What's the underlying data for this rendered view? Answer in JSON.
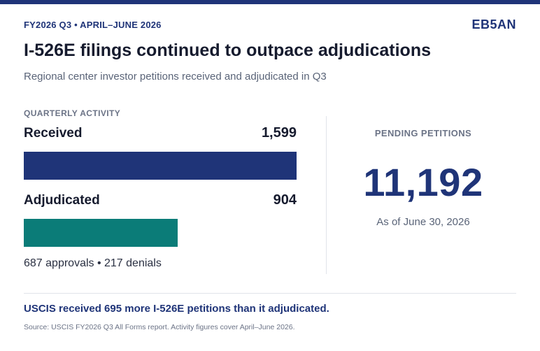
{
  "header": {
    "period": "FY2026 Q3 • APRIL–JUNE 2026",
    "brand": "EB5AN"
  },
  "title": "I-526E filings continued to outpace adjudications",
  "subtitle": "Regional center investor petitions received and adjudicated in Q3",
  "chart_data": {
    "type": "bar",
    "orientation": "horizontal",
    "section_label": "QUARTERLY ACTIVITY",
    "categories": [
      "Received",
      "Adjudicated"
    ],
    "values": [
      1599,
      904
    ],
    "value_labels": [
      "1,599",
      "904"
    ],
    "colors": [
      "#1f3478",
      "#0b7c78"
    ],
    "xlim": [
      0,
      1599
    ],
    "breakdown": "687 approvals • 217 denials"
  },
  "pending": {
    "label": "PENDING PETITIONS",
    "value": "11,192",
    "note": "As of June 30, 2026"
  },
  "takeaway": "USCIS received 695 more I-526E petitions than it adjudicated.",
  "source": "Source: USCIS FY2026 Q3 All Forms report. Activity figures cover April–June 2026."
}
